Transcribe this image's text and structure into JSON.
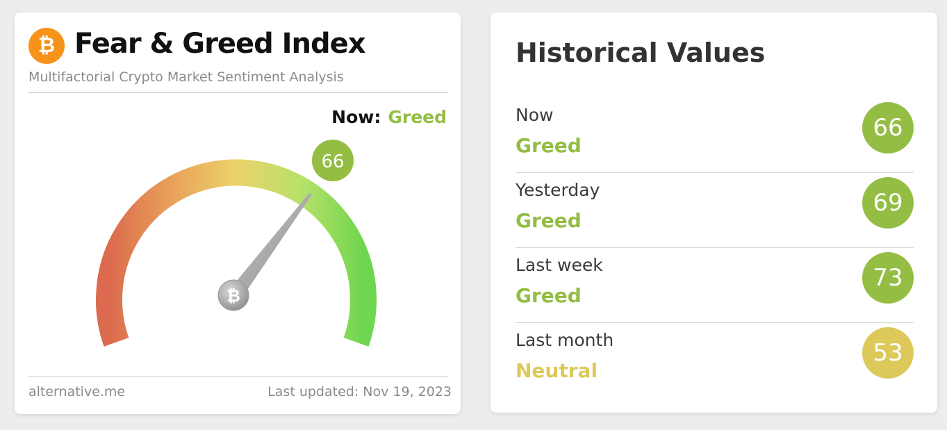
{
  "fear_greed": {
    "logo_glyph": "₿",
    "title": "Fear & Greed Index",
    "subtitle": "Multifactorial Crypto Market Sentiment Analysis",
    "now_label": "Now:",
    "now_value": "Greed",
    "gauge_value": "66",
    "gauge_center_glyph": "₿",
    "footer_source": "alternative.me",
    "footer_updated": "Last updated: Nov 19, 2023"
  },
  "historical": {
    "title": "Historical Values",
    "rows": [
      {
        "period": "Now",
        "classification": "Greed",
        "value": "66",
        "color": "#93bd43"
      },
      {
        "period": "Yesterday",
        "classification": "Greed",
        "value": "69",
        "color": "#93bd43"
      },
      {
        "period": "Last week",
        "classification": "Greed",
        "value": "73",
        "color": "#93bd43"
      },
      {
        "period": "Last month",
        "classification": "Neutral",
        "value": "53",
        "color": "#dcc95a"
      }
    ]
  },
  "colors": {
    "greed": "#93bd43",
    "neutral": "#dcc95a",
    "bitcoin_orange": "#f7931a"
  }
}
